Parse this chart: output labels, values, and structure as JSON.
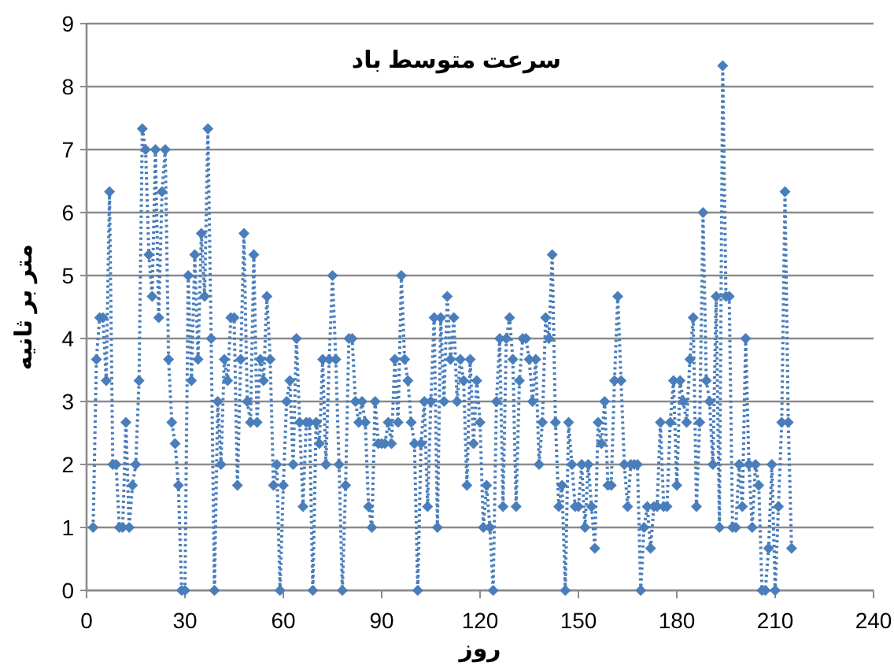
{
  "chart_data": {
    "type": "line",
    "title": "سرعت متوسط باد",
    "xlabel": "روز",
    "ylabel": "متر بر ثانیه",
    "x": [
      2,
      3,
      4,
      5,
      6,
      7,
      8,
      9,
      10,
      11,
      12,
      13,
      14,
      15,
      16,
      17,
      18,
      19,
      20,
      21,
      22,
      23,
      24,
      25,
      26,
      27,
      28,
      29,
      30,
      31,
      32,
      33,
      34,
      35,
      36,
      37,
      38,
      39,
      40,
      41,
      42,
      43,
      44,
      45,
      46,
      47,
      48,
      49,
      50,
      51,
      52,
      53,
      54,
      55,
      56,
      57,
      58,
      59,
      60,
      61,
      62,
      63,
      64,
      65,
      66,
      67,
      68,
      69,
      70,
      71,
      72,
      73,
      74,
      75,
      76,
      77,
      78,
      79,
      80,
      81,
      82,
      83,
      84,
      85,
      86,
      87,
      88,
      89,
      90,
      91,
      92,
      93,
      94,
      95,
      96,
      97,
      98,
      99,
      100,
      101,
      102,
      103,
      104,
      105,
      106,
      107,
      108,
      109,
      110,
      111,
      112,
      113,
      114,
      115,
      116,
      117,
      118,
      119,
      120,
      121,
      122,
      123,
      124,
      125,
      126,
      127,
      128,
      129,
      130,
      131,
      132,
      133,
      134,
      135,
      136,
      137,
      138,
      139,
      140,
      141,
      142,
      143,
      144,
      145,
      146,
      147,
      148,
      149,
      150,
      151,
      152,
      153,
      154,
      155,
      156,
      157,
      158,
      159,
      160,
      161,
      162,
      163,
      164,
      165,
      166,
      167,
      168,
      169,
      170,
      171,
      172,
      173,
      174,
      175,
      176,
      177,
      178,
      179,
      180,
      181,
      182,
      183,
      184,
      185,
      186,
      187,
      188,
      189,
      190,
      191,
      192,
      193,
      194,
      195,
      196,
      197,
      198,
      199,
      200,
      201,
      202,
      203,
      204,
      205,
      206,
      207,
      208,
      209,
      210,
      211,
      212,
      213,
      214,
      215
    ],
    "series": [
      {
        "color": "#4a7ebb",
        "values": [
          1,
          3.67,
          4.33,
          4.33,
          3.33,
          6.33,
          2,
          2,
          1,
          1,
          2.67,
          1,
          1.67,
          2,
          3.33,
          7.33,
          7,
          5.33,
          4.67,
          7,
          4.33,
          6.33,
          7,
          3.67,
          2.67,
          2.33,
          1.67,
          0,
          0,
          5,
          3.33,
          5.33,
          3.67,
          5.67,
          4.67,
          7.33,
          4,
          0,
          3,
          2,
          3.67,
          3.33,
          4.33,
          4.33,
          1.67,
          3.67,
          5.67,
          3,
          2.67,
          5.33,
          2.67,
          3.67,
          3.33,
          4.67,
          3.67,
          1.67,
          2,
          0,
          1.67,
          3,
          3.33,
          2,
          4,
          2.67,
          1.33,
          2.67,
          2.67,
          0,
          2.67,
          2.33,
          3.67,
          2,
          3.67,
          5,
          3.67,
          2,
          0,
          1.67,
          4,
          4,
          3,
          2.67,
          3,
          2.67,
          1.33,
          1,
          3,
          2.33,
          2.33,
          2.33,
          2.67,
          2.33,
          3.67,
          2.67,
          5,
          3.67,
          3.33,
          2.67,
          2.33,
          0,
          2.33,
          3,
          1.33,
          3,
          4.33,
          1,
          4.33,
          3,
          4.67,
          3.67,
          4.33,
          3,
          3.67,
          3.33,
          1.67,
          3.67,
          2.33,
          3.33,
          2.67,
          1,
          1.67,
          1,
          0,
          3,
          4,
          1.33,
          4,
          4.33,
          3.67,
          1.33,
          3.33,
          4,
          4,
          3.67,
          3,
          3.67,
          2,
          2.67,
          4.33,
          4,
          5.33,
          2.67,
          1.33,
          1.67,
          0,
          2.67,
          2,
          1.33,
          1.33,
          2,
          1,
          2,
          1.33,
          0.67,
          2.67,
          2.33,
          3,
          1.67,
          1.67,
          3.33,
          4.67,
          3.33,
          2,
          1.33,
          2,
          2,
          2,
          0,
          1,
          1.33,
          0.67,
          1.33,
          1.33,
          2.67,
          1.33,
          1.33,
          2.67,
          3.33,
          1.67,
          3.33,
          3,
          2.67,
          3.67,
          4.33,
          1.33,
          2.67,
          6,
          3.33,
          3,
          2,
          4.67,
          1,
          8.33,
          4.67,
          4.67,
          1,
          1,
          2,
          1.33,
          4,
          2,
          1,
          2,
          1.67,
          0,
          0,
          0.67,
          2,
          0,
          1.33,
          2.67,
          6.33,
          2.67,
          0.67
        ]
      }
    ],
    "xlim": [
      0,
      240
    ],
    "xticks": [
      0,
      30,
      60,
      90,
      120,
      150,
      180,
      210,
      240
    ],
    "ylim": [
      0,
      9
    ],
    "yticks": [
      0,
      1,
      2,
      3,
      4,
      5,
      6,
      7,
      8,
      9
    ],
    "grid": "y",
    "marker": "diamond",
    "line_style": "dotted"
  }
}
